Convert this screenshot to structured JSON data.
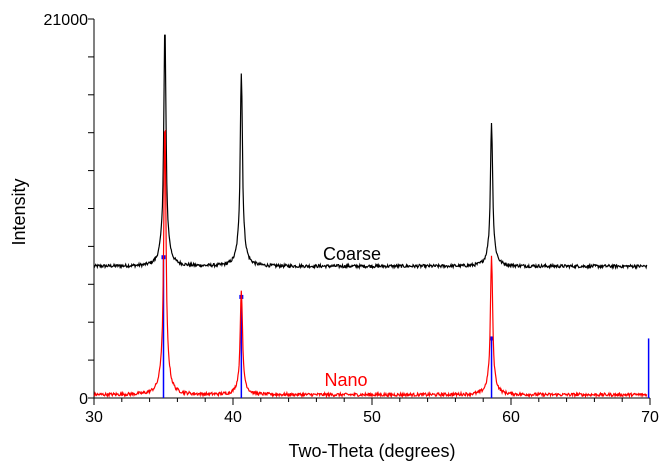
{
  "chart_data": {
    "type": "line",
    "xlabel": "Two-Theta (degrees)",
    "ylabel": "Intensity",
    "xlim": [
      30,
      70
    ],
    "ylim": [
      0,
      21000
    ],
    "x_ticks": [
      "30",
      "40",
      "50",
      "60",
      "70"
    ],
    "y_ticks": [
      "0",
      "21000"
    ],
    "grid": false,
    "legend": "none",
    "series": [
      {
        "name": "Coarse",
        "color": "#000000",
        "baseline": 7300,
        "peaks": [
          {
            "x": 35.1,
            "height": 20500
          },
          {
            "x": 40.6,
            "height": 18000
          },
          {
            "x": 58.6,
            "height": 15200
          }
        ]
      },
      {
        "name": "Nano",
        "color": "#ff0000",
        "baseline": 180,
        "peaks": [
          {
            "x": 35.1,
            "height": 15200
          },
          {
            "x": 40.6,
            "height": 6000
          },
          {
            "x": 58.6,
            "height": 7800
          }
        ]
      }
    ],
    "reference_lines": {
      "color": "#0000ff",
      "lines": [
        {
          "x": 35.0,
          "height": 7800
        },
        {
          "x": 40.6,
          "height": 5600
        },
        {
          "x": 58.6,
          "height": 3300
        },
        {
          "x": 69.9,
          "height": 3300
        }
      ]
    }
  }
}
